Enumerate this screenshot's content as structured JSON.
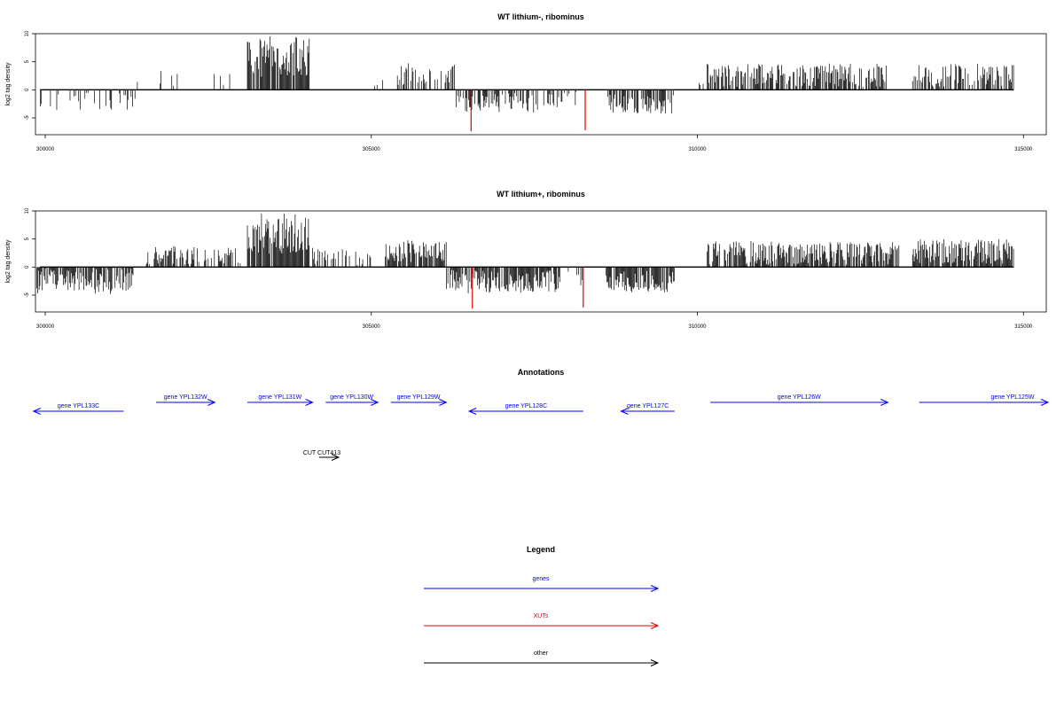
{
  "chart_data": [
    {
      "type": "bar",
      "title": "WT lithium-, ribominus",
      "ylabel": "log2 tag density",
      "xlabel": "",
      "xlim": [
        299850,
        315350
      ],
      "ylim": [
        -8,
        10
      ],
      "x_ticks": [
        "300000",
        "305000",
        "310000",
        "315000"
      ],
      "y_ticks": [
        "-5",
        "0",
        "5",
        "10"
      ],
      "grid": false,
      "segments": [
        {
          "start": 299900,
          "end": 301400,
          "mean": -1.9,
          "spread": 1.2,
          "density": 0.22,
          "seed": 11
        },
        {
          "start": 301400,
          "end": 303000,
          "mean": 2.0,
          "spread": 1.0,
          "density": 0.1,
          "seed": 12
        },
        {
          "start": 303100,
          "end": 304050,
          "mean": 5.8,
          "spread": 2.2,
          "density": 0.9,
          "seed": 13
        },
        {
          "start": 304500,
          "end": 305300,
          "mean": 1.6,
          "spread": 0.8,
          "density": 0.05,
          "seed": 14
        },
        {
          "start": 305400,
          "end": 306300,
          "mean": 2.6,
          "spread": 1.1,
          "density": 0.4,
          "seed": 15
        },
        {
          "start": 306300,
          "end": 307900,
          "mean": -2.3,
          "spread": 1.1,
          "density": 0.45,
          "seed": 16
        },
        {
          "start": 307900,
          "end": 308300,
          "mean": -1.8,
          "spread": 0.9,
          "density": 0.15,
          "seed": 17
        },
        {
          "start": 308600,
          "end": 309650,
          "mean": -2.5,
          "spread": 1.1,
          "density": 0.75,
          "seed": 18
        },
        {
          "start": 309800,
          "end": 310100,
          "mean": 1.8,
          "spread": 0.7,
          "density": 0.05,
          "seed": 19
        },
        {
          "start": 310150,
          "end": 312900,
          "mean": 2.6,
          "spread": 1.3,
          "density": 0.7,
          "seed": 20
        },
        {
          "start": 313300,
          "end": 314850,
          "mean": 2.5,
          "spread": 1.2,
          "density": 0.65,
          "seed": 21
        }
      ],
      "highlight_spikes": [
        {
          "x": 306530,
          "y": -7.4,
          "color": "#e60000"
        },
        {
          "x": 308280,
          "y": -7.2,
          "color": "#e60000"
        }
      ]
    },
    {
      "type": "bar",
      "title": "WT lithium+, ribominus",
      "ylabel": "log2 tag density",
      "xlabel": "",
      "xlim": [
        299850,
        315350
      ],
      "ylim": [
        -8,
        10
      ],
      "x_ticks": [
        "300000",
        "305000",
        "310000",
        "315000"
      ],
      "y_ticks": [
        "-5",
        "0",
        "5",
        "10"
      ],
      "grid": false,
      "segments": [
        {
          "start": 299870,
          "end": 301350,
          "mean": -2.4,
          "spread": 1.5,
          "density": 0.85,
          "seed": 31
        },
        {
          "start": 301550,
          "end": 303000,
          "mean": 2.1,
          "spread": 1.0,
          "density": 0.5,
          "seed": 32
        },
        {
          "start": 303100,
          "end": 304050,
          "mean": 5.5,
          "spread": 2.0,
          "density": 0.95,
          "seed": 33
        },
        {
          "start": 304100,
          "end": 305100,
          "mean": 1.8,
          "spread": 0.9,
          "density": 0.3,
          "seed": 34
        },
        {
          "start": 305200,
          "end": 306150,
          "mean": 2.8,
          "spread": 1.2,
          "density": 0.85,
          "seed": 35
        },
        {
          "start": 306150,
          "end": 307900,
          "mean": -2.6,
          "spread": 1.3,
          "density": 0.85,
          "seed": 36
        },
        {
          "start": 307900,
          "end": 308250,
          "mean": -2.0,
          "spread": 1.0,
          "density": 0.3,
          "seed": 37
        },
        {
          "start": 308600,
          "end": 309650,
          "mean": -2.6,
          "spread": 1.2,
          "density": 0.85,
          "seed": 38
        },
        {
          "start": 310150,
          "end": 313100,
          "mean": 2.5,
          "spread": 1.3,
          "density": 0.8,
          "seed": 39
        },
        {
          "start": 313300,
          "end": 314850,
          "mean": 2.8,
          "spread": 1.4,
          "density": 0.9,
          "seed": 40
        }
      ],
      "highlight_spikes": [
        {
          "x": 306550,
          "y": -7.4,
          "color": "#e60000"
        },
        {
          "x": 308250,
          "y": -7.2,
          "color": "#e60000"
        }
      ]
    }
  ],
  "annotations": {
    "title": "Annotations",
    "items": [
      {
        "label": "gene YPL133C",
        "start": 299820,
        "end": 301200,
        "strand": "-",
        "row": 0,
        "color": "#0000ff"
      },
      {
        "label": "gene YPL132W",
        "start": 301700,
        "end": 302600,
        "strand": "+",
        "row": 1,
        "color": "#0000ff"
      },
      {
        "label": "gene YPL131W",
        "start": 303100,
        "end": 304100,
        "strand": "+",
        "row": 1,
        "color": "#0000ff"
      },
      {
        "label": "gene YPL130W",
        "start": 304300,
        "end": 305100,
        "strand": "+",
        "row": 1,
        "color": "#0000ff"
      },
      {
        "label": "gene YPL129W",
        "start": 305300,
        "end": 306150,
        "strand": "+",
        "row": 1,
        "color": "#0000ff"
      },
      {
        "label": "gene YPL128C",
        "start": 306500,
        "end": 308250,
        "strand": "-",
        "row": 0,
        "color": "#0000ff"
      },
      {
        "label": "gene YPL127C",
        "start": 308830,
        "end": 309650,
        "strand": "-",
        "row": 0,
        "color": "#0000ff"
      },
      {
        "label": "gene YPL126W",
        "start": 310200,
        "end": 312920,
        "strand": "+",
        "row": 1,
        "color": "#0000ff"
      },
      {
        "label": "gene YPL125W",
        "start": 313400,
        "end": 315520,
        "strand": "+",
        "row": 1,
        "color": "#0000ff"
      },
      {
        "label": "CUT CUT413",
        "start": 304200,
        "end": 304500,
        "strand": "+",
        "row": 2,
        "color": "#000000"
      }
    ]
  },
  "legend": {
    "title": "Legend",
    "entries": [
      {
        "label": "genes",
        "color": "#0000ff"
      },
      {
        "label": "XUTs",
        "color": "#e60000"
      },
      {
        "label": "other",
        "color": "#000000"
      }
    ]
  }
}
